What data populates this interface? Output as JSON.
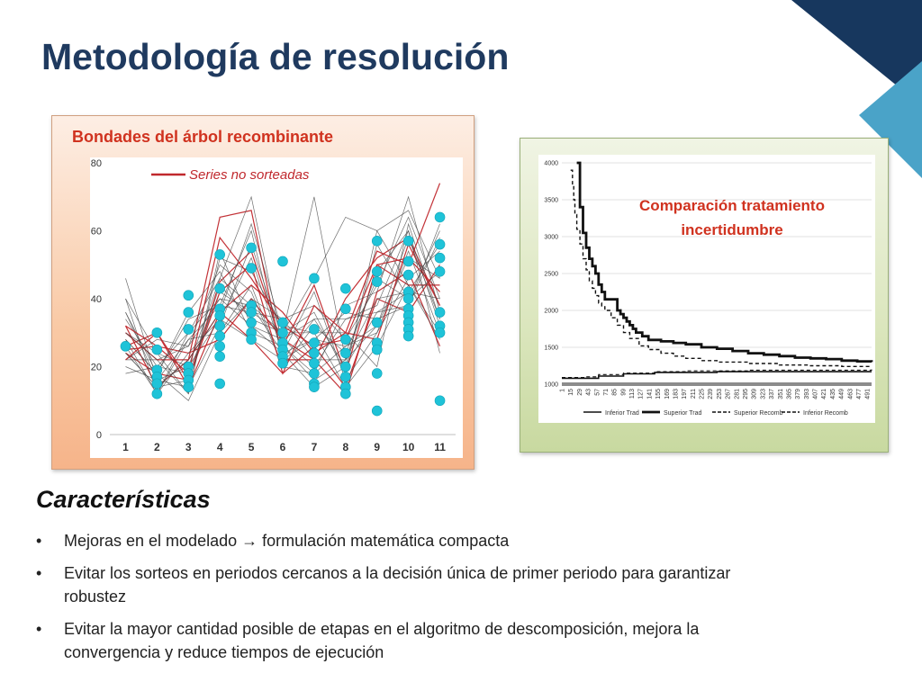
{
  "slide": {
    "title": "Metodología de resolución",
    "subtitle": "Características",
    "bullets": [
      {
        "marker": "•",
        "text": "Mejoras en el modelado  formulación matemática compacta",
        "parts": [
          "Mejoras en el modelado ",
          "→",
          " formulación matemática compacta"
        ]
      },
      {
        "marker": "•",
        "text": "Evitar los sorteos en periodos cercanos a la decisión única de primer periodo para garantizar robustez"
      },
      {
        "marker": "•",
        "text": "Evitar la mayor cantidad posible de etapas en el algoritmo de descomposición, mejora la convergencia y reduce tiempos de ejecución"
      }
    ],
    "colors": {
      "title": "#1f3a5f",
      "heading": "#d0321f",
      "corner_dark": "#17375e",
      "corner_light": "#4aa3c8"
    }
  },
  "left_panel": {
    "heading": "Bondades del árbol recombinante"
  },
  "right_panel": {
    "heading_lines": [
      "Comparación tratamiento",
      "incertidumbre"
    ]
  },
  "chart_data": [
    {
      "type": "line",
      "title": "",
      "xlabel": "",
      "ylabel": "",
      "x": [
        1,
        2,
        3,
        4,
        5,
        6,
        7,
        8,
        9,
        10,
        11
      ],
      "y_ticks": [
        0,
        20,
        40,
        60,
        80
      ],
      "ylim": [
        0,
        80
      ],
      "legend": {
        "position": "top-left",
        "entries": [
          {
            "name": "Series no sorteadas",
            "color": "#c0282d"
          }
        ]
      },
      "series": [
        {
          "name": "Series no sorteadas",
          "values": [
            24,
            18,
            16,
            45,
            54,
            26,
            44,
            18,
            50,
            44,
            44
          ]
        },
        {
          "values": [
            32,
            14,
            22,
            64,
            66,
            22,
            22,
            40,
            52,
            58,
            38
          ]
        },
        {
          "values": [
            28,
            12,
            30,
            46,
            38,
            30,
            70,
            22,
            48,
            60,
            24
          ]
        },
        {
          "values": [
            22,
            22,
            26,
            40,
            32,
            28,
            34,
            34,
            36,
            42,
            56
          ]
        },
        {
          "values": [
            36,
            18,
            10,
            30,
            44,
            20,
            18,
            26,
            30,
            54,
            30
          ]
        },
        {
          "values": [
            26,
            30,
            14,
            36,
            28,
            18,
            26,
            14,
            40,
            36,
            50
          ]
        },
        {
          "values": [
            30,
            24,
            12,
            52,
            48,
            32,
            30,
            30,
            20,
            62,
            34
          ]
        },
        {
          "values": [
            20,
            16,
            20,
            34,
            52,
            24,
            14,
            20,
            56,
            40,
            60
          ]
        },
        {
          "values": [
            34,
            20,
            18,
            42,
            36,
            34,
            38,
            28,
            44,
            64,
            40
          ]
        },
        {
          "values": [
            25,
            26,
            24,
            28,
            40,
            28,
            22,
            12,
            42,
            48,
            26
          ]
        },
        {
          "values": [
            40,
            12,
            28,
            38,
            60,
            22,
            28,
            36,
            34,
            38,
            62
          ]
        },
        {
          "values": [
            28,
            18,
            36,
            48,
            30,
            26,
            16,
            22,
            32,
            52,
            46
          ]
        },
        {
          "values": [
            24,
            14,
            16,
            44,
            34,
            30,
            36,
            18,
            60,
            44,
            28
          ]
        },
        {
          "values": [
            30,
            22,
            22,
            36,
            44,
            36,
            24,
            30,
            28,
            56,
            38
          ]
        },
        {
          "values": [
            22,
            28,
            26,
            50,
            42,
            20,
            32,
            24,
            46,
            40,
            48
          ]
        },
        {
          "values": [
            36,
            16,
            14,
            32,
            56,
            28,
            20,
            34,
            38,
            60,
            32
          ]
        },
        {
          "values": [
            18,
            20,
            30,
            40,
            38,
            24,
            42,
            16,
            30,
            46,
            54
          ]
        },
        {
          "values": [
            32,
            26,
            18,
            58,
            46,
            32,
            26,
            28,
            50,
            52,
            42
          ]
        },
        {
          "values": [
            26,
            12,
            24,
            34,
            28,
            22,
            34,
            20,
            36,
            38,
            58
          ]
        },
        {
          "values": [
            40,
            24,
            20,
            46,
            70,
            26,
            18,
            38,
            42,
            70,
            36
          ]
        },
        {
          "values": [
            28,
            18,
            34,
            38,
            36,
            30,
            30,
            14,
            26,
            44,
            30
          ]
        },
        {
          "values": [
            22,
            30,
            16,
            42,
            50,
            18,
            38,
            30,
            54,
            50,
            74
          ]
        },
        {
          "values": [
            46,
            16,
            28,
            30,
            40,
            34,
            22,
            22,
            40,
            42,
            40
          ]
        },
        {
          "values": [
            30,
            22,
            12,
            54,
            32,
            24,
            28,
            26,
            32,
            58,
            34
          ]
        },
        {
          "values": [
            24,
            14,
            22,
            36,
            62,
            30,
            46,
            64,
            60,
            66,
            46
          ]
        }
      ],
      "markers": [
        {
          "x": 1,
          "y": 26
        },
        {
          "x": 2,
          "y": 30
        },
        {
          "x": 2,
          "y": 25
        },
        {
          "x": 2,
          "y": 19
        },
        {
          "x": 2,
          "y": 17
        },
        {
          "x": 2,
          "y": 15
        },
        {
          "x": 2,
          "y": 12
        },
        {
          "x": 3,
          "y": 41
        },
        {
          "x": 3,
          "y": 36
        },
        {
          "x": 3,
          "y": 31
        },
        {
          "x": 3,
          "y": 20
        },
        {
          "x": 3,
          "y": 18
        },
        {
          "x": 3,
          "y": 16
        },
        {
          "x": 3,
          "y": 14
        },
        {
          "x": 4,
          "y": 53
        },
        {
          "x": 4,
          "y": 43
        },
        {
          "x": 4,
          "y": 37
        },
        {
          "x": 4,
          "y": 35
        },
        {
          "x": 4,
          "y": 32
        },
        {
          "x": 4,
          "y": 29
        },
        {
          "x": 4,
          "y": 26
        },
        {
          "x": 4,
          "y": 23
        },
        {
          "x": 4,
          "y": 15
        },
        {
          "x": 5,
          "y": 55
        },
        {
          "x": 5,
          "y": 49
        },
        {
          "x": 5,
          "y": 38
        },
        {
          "x": 5,
          "y": 36
        },
        {
          "x": 5,
          "y": 33
        },
        {
          "x": 5,
          "y": 30
        },
        {
          "x": 5,
          "y": 28
        },
        {
          "x": 6,
          "y": 51
        },
        {
          "x": 6,
          "y": 33
        },
        {
          "x": 6,
          "y": 30
        },
        {
          "x": 6,
          "y": 27
        },
        {
          "x": 6,
          "y": 25
        },
        {
          "x": 6,
          "y": 23
        },
        {
          "x": 6,
          "y": 21
        },
        {
          "x": 7,
          "y": 46
        },
        {
          "x": 7,
          "y": 31
        },
        {
          "x": 7,
          "y": 27
        },
        {
          "x": 7,
          "y": 24
        },
        {
          "x": 7,
          "y": 21
        },
        {
          "x": 7,
          "y": 18
        },
        {
          "x": 7,
          "y": 15
        },
        {
          "x": 7,
          "y": 14
        },
        {
          "x": 8,
          "y": 43
        },
        {
          "x": 8,
          "y": 37
        },
        {
          "x": 8,
          "y": 28
        },
        {
          "x": 8,
          "y": 24
        },
        {
          "x": 8,
          "y": 20
        },
        {
          "x": 8,
          "y": 17
        },
        {
          "x": 8,
          "y": 14
        },
        {
          "x": 8,
          "y": 12
        },
        {
          "x": 9,
          "y": 57
        },
        {
          "x": 9,
          "y": 48
        },
        {
          "x": 9,
          "y": 45
        },
        {
          "x": 9,
          "y": 33
        },
        {
          "x": 9,
          "y": 27
        },
        {
          "x": 9,
          "y": 25
        },
        {
          "x": 9,
          "y": 18
        },
        {
          "x": 9,
          "y": 7
        },
        {
          "x": 10,
          "y": 57
        },
        {
          "x": 10,
          "y": 51
        },
        {
          "x": 10,
          "y": 47
        },
        {
          "x": 10,
          "y": 42
        },
        {
          "x": 10,
          "y": 40
        },
        {
          "x": 10,
          "y": 37
        },
        {
          "x": 10,
          "y": 35
        },
        {
          "x": 10,
          "y": 33
        },
        {
          "x": 10,
          "y": 31
        },
        {
          "x": 10,
          "y": 29
        },
        {
          "x": 11,
          "y": 64
        },
        {
          "x": 11,
          "y": 56
        },
        {
          "x": 11,
          "y": 52
        },
        {
          "x": 11,
          "y": 48
        },
        {
          "x": 11,
          "y": 36
        },
        {
          "x": 11,
          "y": 32
        },
        {
          "x": 11,
          "y": 30
        },
        {
          "x": 11,
          "y": 10
        }
      ],
      "colors": {
        "grey": "#4a4a4a",
        "red": "#c0282d",
        "marker": "#1fc3d8"
      }
    },
    {
      "type": "line",
      "title": "",
      "ylim": [
        1000,
        4000
      ],
      "y_ticks": [
        1000,
        1500,
        2000,
        2500,
        3000,
        3500,
        4000
      ],
      "xlim": [
        1,
        498
      ],
      "x_ticks": [
        1,
        15,
        29,
        43,
        57,
        71,
        85,
        99,
        113,
        127,
        141,
        155,
        169,
        183,
        197,
        211,
        225,
        239,
        253,
        267,
        281,
        295,
        309,
        323,
        337,
        351,
        365,
        379,
        393,
        407,
        421,
        435,
        449,
        463,
        477,
        491
      ],
      "legend": {
        "position": "bottom",
        "entries": [
          "Inferior Trad",
          "Superior Trad",
          "Superior Recomb",
          "Inferior Recomb"
        ]
      },
      "series": [
        {
          "name": "Inferior Trad",
          "style": "solid-thin",
          "x": [
            1,
            40,
            60,
            100,
            150,
            250,
            498
          ],
          "y": [
            1080,
            1080,
            1110,
            1140,
            1160,
            1170,
            1170
          ]
        },
        {
          "name": "Superior Trad",
          "style": "solid-thick",
          "x": [
            25,
            30,
            35,
            40,
            45,
            50,
            55,
            60,
            65,
            70,
            75,
            80,
            85,
            90,
            95,
            100,
            105,
            110,
            115,
            120,
            130,
            140,
            150,
            160,
            180,
            200,
            225,
            250,
            275,
            300,
            325,
            350,
            375,
            400,
            425,
            450,
            475,
            498
          ],
          "y": [
            4000,
            3400,
            3050,
            2850,
            2700,
            2600,
            2500,
            2350,
            2250,
            2150,
            2150,
            2150,
            2150,
            2000,
            1950,
            1900,
            1850,
            1800,
            1750,
            1700,
            1650,
            1600,
            1600,
            1580,
            1560,
            1540,
            1500,
            1480,
            1450,
            1420,
            1400,
            1380,
            1360,
            1350,
            1340,
            1320,
            1310,
            1300
          ]
        },
        {
          "name": "Superior Recomb",
          "style": "dashed-medium",
          "x": [
            15,
            18,
            20,
            22,
            25,
            30,
            35,
            40,
            45,
            50,
            55,
            60,
            65,
            70,
            80,
            90,
            100,
            110,
            125,
            140,
            160,
            180,
            200,
            225,
            250,
            300,
            350,
            400,
            450,
            498
          ],
          "y": [
            3900,
            3700,
            3500,
            3300,
            3100,
            2900,
            2700,
            2550,
            2400,
            2300,
            2200,
            2100,
            2050,
            2000,
            1900,
            1800,
            1700,
            1620,
            1520,
            1470,
            1420,
            1380,
            1350,
            1320,
            1300,
            1280,
            1260,
            1250,
            1240,
            1235
          ]
        },
        {
          "name": "Inferior Recomb",
          "style": "dashed-thin",
          "x": [
            1,
            40,
            60,
            100,
            150,
            200,
            300,
            498
          ],
          "y": [
            1090,
            1100,
            1130,
            1150,
            1170,
            1180,
            1190,
            1200
          ]
        }
      ]
    }
  ]
}
